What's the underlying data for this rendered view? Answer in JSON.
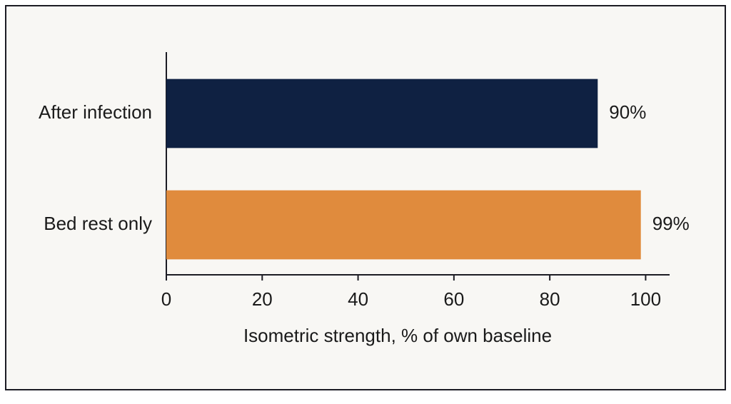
{
  "chart_data": {
    "type": "bar",
    "orientation": "horizontal",
    "categories": [
      "After infection",
      "Bed rest only"
    ],
    "values": [
      90,
      99
    ],
    "value_labels": [
      "90%",
      "99%"
    ],
    "colors": [
      "#0f2142",
      "#e08b3d"
    ],
    "xlabel": "Isometric strength, % of own baseline",
    "xlim": [
      0,
      105
    ],
    "xticks": [
      0,
      20,
      40,
      60,
      80,
      100
    ]
  }
}
